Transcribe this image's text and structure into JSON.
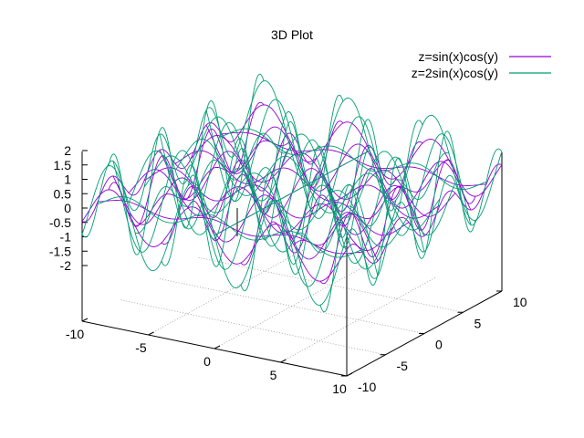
{
  "chart_data": {
    "type": "surface-3d",
    "title": "3D Plot",
    "xlabel": "",
    "ylabel": "",
    "zlabel": "",
    "xlim": [
      -10,
      10
    ],
    "ylim": [
      -10,
      10
    ],
    "zlim": [
      -2,
      2
    ],
    "x_ticks": [
      "-10",
      "-5",
      "0",
      "5",
      "10"
    ],
    "y_ticks": [
      "-10",
      "-5",
      "0",
      "5",
      "10"
    ],
    "z_ticks": [
      "2",
      "1.5",
      "1",
      "0.5",
      "0",
      "-0.5",
      "-1",
      "-1.5",
      "-2"
    ],
    "grid": true,
    "legend_position": "top-right",
    "series": [
      {
        "name": "z=sin(x)cos(y)",
        "color": "#9400d3",
        "amplitude": 1
      },
      {
        "name": "z=2sin(x)cos(y)",
        "color": "#009e73",
        "amplitude": 2
      }
    ]
  }
}
